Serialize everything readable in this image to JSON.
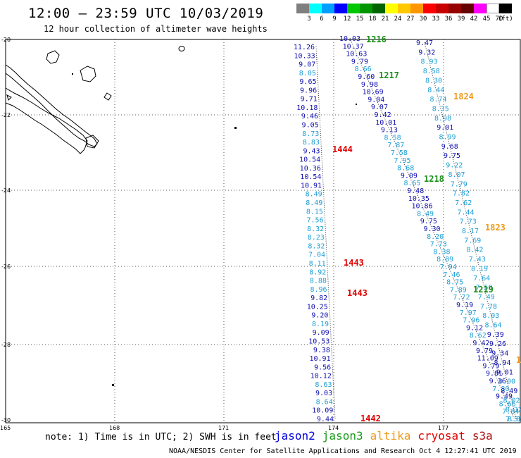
{
  "header": {
    "title": "12:00 – 23:59 UTC 10/03/2019",
    "subtitle": "12 hour collection of altimeter wave heights"
  },
  "color_scale": {
    "unit": "(ft)",
    "swatches": [
      {
        "label": "3",
        "color": "#7f7f7f"
      },
      {
        "label": "6",
        "color": "#00ffff"
      },
      {
        "label": "9",
        "color": "#00a0ff"
      },
      {
        "label": "12",
        "color": "#0000ff"
      },
      {
        "label": "15",
        "color": "#00c800"
      },
      {
        "label": "18",
        "color": "#009600"
      },
      {
        "label": "21",
        "color": "#006400"
      },
      {
        "label": "24",
        "color": "#ffff00"
      },
      {
        "label": "27",
        "color": "#ffc800"
      },
      {
        "label": "30",
        "color": "#ff9600"
      },
      {
        "label": "33",
        "color": "#ff0000"
      },
      {
        "label": "36",
        "color": "#c80000"
      },
      {
        "label": "39",
        "color": "#960000"
      },
      {
        "label": "42",
        "color": "#640000"
      },
      {
        "label": "45",
        "color": "#ff00ff"
      },
      {
        "label": "70",
        "color": "#ffffff"
      },
      {
        "label": "",
        "color": "#000000"
      }
    ]
  },
  "map": {
    "lat_labels": [
      "-20",
      "-22",
      "-24",
      "-26",
      "-28",
      "-30"
    ],
    "lon_labels": [
      "165",
      "168",
      "171",
      "174",
      "177"
    ],
    "colors": {
      "jason2": "#1010b0",
      "jason3": "#1a8f1a",
      "jason3_values": "#1e9fd6",
      "altika": "#f09a1a",
      "cryosat": "#e00000",
      "s3a": "#b01010"
    },
    "track1_values": [
      "11.26",
      "10.33",
      "9.07",
      "8.05",
      "9.65",
      "9.96",
      "9.71",
      "10.18",
      "9.46",
      "9.05",
      "8.73",
      "8.83",
      "9.43",
      "10.54",
      "10.36",
      "10.54",
      "10.91",
      "8.49",
      "8.49",
      "8.15",
      "7.56",
      "8.32",
      "8.23",
      "8.32",
      "7.04",
      "8.11",
      "8.92",
      "8.88",
      "8.96",
      "9.82",
      "10.25",
      "9.20",
      "8.19",
      "9.09",
      "10.53",
      "9.38",
      "10.91",
      "9.56",
      "10.12",
      "8.63",
      "9.03",
      "8.64",
      "10.09",
      "9.44"
    ],
    "track2_values": [
      "10.03",
      "10.37",
      "10.63",
      "9.79",
      "8.66",
      "9.60",
      "9.98",
      "10.69",
      "9.04",
      "9.07",
      "9.42",
      "10.01",
      "9.13",
      "8.58",
      "7.87",
      "7.58",
      "7.95",
      "8.68",
      "9.09",
      "8.65",
      "9.48",
      "10.35",
      "10.86",
      "8.49",
      "9.75",
      "9.30",
      "8.20",
      "7.73",
      "8.38",
      "8.89",
      "7.94",
      "7.46",
      "8.75",
      "7.89",
      "7.72",
      "9.19",
      "7.97",
      "7.96",
      "9.12",
      "8.62",
      "9.42",
      "9.79",
      "11.09",
      "9.79",
      "9.81",
      "9.36",
      "7.80",
      "9.49",
      "8.66",
      "7.84",
      "7.55"
    ],
    "track3_values": [
      "9.47",
      "9.32",
      "8.93",
      "8.58",
      "8.30",
      "8.44",
      "8.74",
      "8.35",
      "8.98",
      "9.01",
      "8.99",
      "9.68",
      "9.75",
      "9.22",
      "8.07",
      "7.79",
      "7.82",
      "7.62",
      "7.44",
      "7.73",
      "8.17",
      "7.69",
      "8.42",
      "7.43",
      "8.19",
      "7.64",
      "7.50",
      "7.49",
      "7.78",
      "8.03",
      "8.64",
      "9.39",
      "9.26",
      "9.34",
      "8.94",
      "9.01",
      "8.00",
      "8.49",
      "8.02",
      "8.32",
      "8.66"
    ],
    "time_labels": [
      {
        "text": "1216",
        "sat": "jason3"
      },
      {
        "text": "1217",
        "sat": "jason3"
      },
      {
        "text": "1218",
        "sat": "jason3"
      },
      {
        "text": "1219",
        "sat": "jason3"
      },
      {
        "text": "1824",
        "sat": "altika"
      },
      {
        "text": "1823",
        "sat": "altika"
      },
      {
        "text": "1",
        "sat": "altika"
      },
      {
        "text": "1444",
        "sat": "cryosat"
      },
      {
        "text": "1443",
        "sat": "cryosat"
      },
      {
        "text": "1443",
        "sat": "cryosat"
      },
      {
        "text": "1442",
        "sat": "cryosat"
      }
    ]
  },
  "footer": {
    "note": "note: 1) Time is in UTC; 2) SWH is in feet",
    "legend": [
      {
        "name": "jason2",
        "color": "#0000e0"
      },
      {
        "name": "jason3",
        "color": "#1a9a1a"
      },
      {
        "name": "altika",
        "color": "#f09a1a"
      },
      {
        "name": "cryosat",
        "color": "#e00000"
      },
      {
        "name": "s3a",
        "color": "#b01010"
      }
    ],
    "credit": "NOAA/NESDIS Center for Satellite Applications and Research   Oct  4 12:27:41 UTC 2019"
  }
}
